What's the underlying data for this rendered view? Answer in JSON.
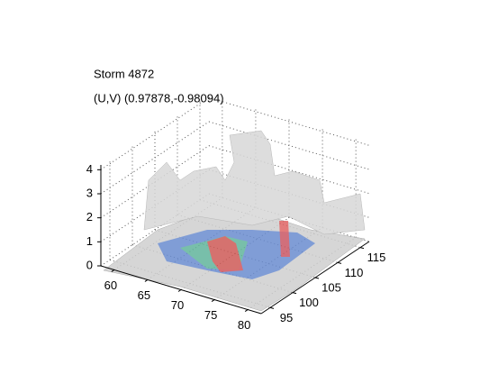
{
  "chart_data": {
    "type": "surface3d",
    "title": "Storm 4872",
    "subtitle": "(U,V) (0.97878,-0.98094)",
    "xlim": [
      58,
      82
    ],
    "xticks": [
      60,
      65,
      70,
      75,
      80
    ],
    "ylim": [
      93,
      117
    ],
    "yticks": [
      95,
      100,
      105,
      110,
      115
    ],
    "zlim": [
      0,
      4.2
    ],
    "zticks": [
      0,
      1,
      2,
      3,
      4
    ],
    "grid": true
  }
}
